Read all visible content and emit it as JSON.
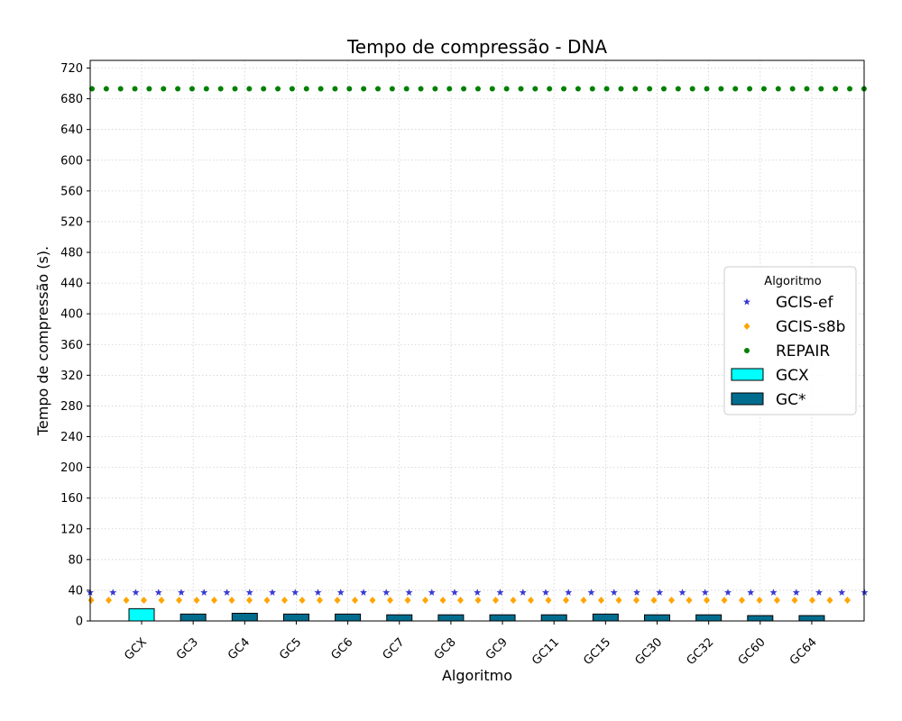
{
  "chart_data": {
    "type": "bar",
    "title": "Tempo de compressão -  DNA",
    "xlabel": "Algoritmo",
    "ylabel": "Tempo de compressão (s).",
    "ylim": [
      0,
      730
    ],
    "yticks": [
      0,
      40,
      80,
      120,
      160,
      200,
      240,
      280,
      320,
      360,
      400,
      440,
      480,
      520,
      560,
      600,
      640,
      680,
      720
    ],
    "grid": true,
    "categories": [
      "GCX",
      "GC3",
      "GC4",
      "GC5",
      "GC6",
      "GC7",
      "GC8",
      "GC9",
      "GC11",
      "GC15",
      "GC30",
      "GC32",
      "GC60",
      "GC64"
    ],
    "bars": {
      "values": [
        16,
        9,
        10,
        9,
        9,
        8,
        8,
        8,
        8,
        9,
        8,
        8,
        7,
        7
      ],
      "series": [
        {
          "name": "GCX",
          "color": "#00ffff",
          "indices": [
            0
          ]
        },
        {
          "name": "GC*",
          "color": "#006d8f",
          "indices": [
            1,
            2,
            3,
            4,
            5,
            6,
            7,
            8,
            9,
            10,
            11,
            12,
            13
          ]
        }
      ]
    },
    "reference_series": [
      {
        "name": "GCIS-ef",
        "value": 37,
        "marker": "star",
        "color": "#3a3ad6"
      },
      {
        "name": "GCIS-s8b",
        "value": 27,
        "marker": "diamond",
        "color": "#ffa500"
      },
      {
        "name": "REPAIR",
        "value": 693,
        "marker": "circle",
        "color": "#008000"
      }
    ],
    "legend": {
      "title": "Algoritmo",
      "placement": "center-right",
      "entries": [
        "GCIS-ef",
        "GCIS-s8b",
        "REPAIR",
        "GCX",
        "GC*"
      ]
    }
  }
}
